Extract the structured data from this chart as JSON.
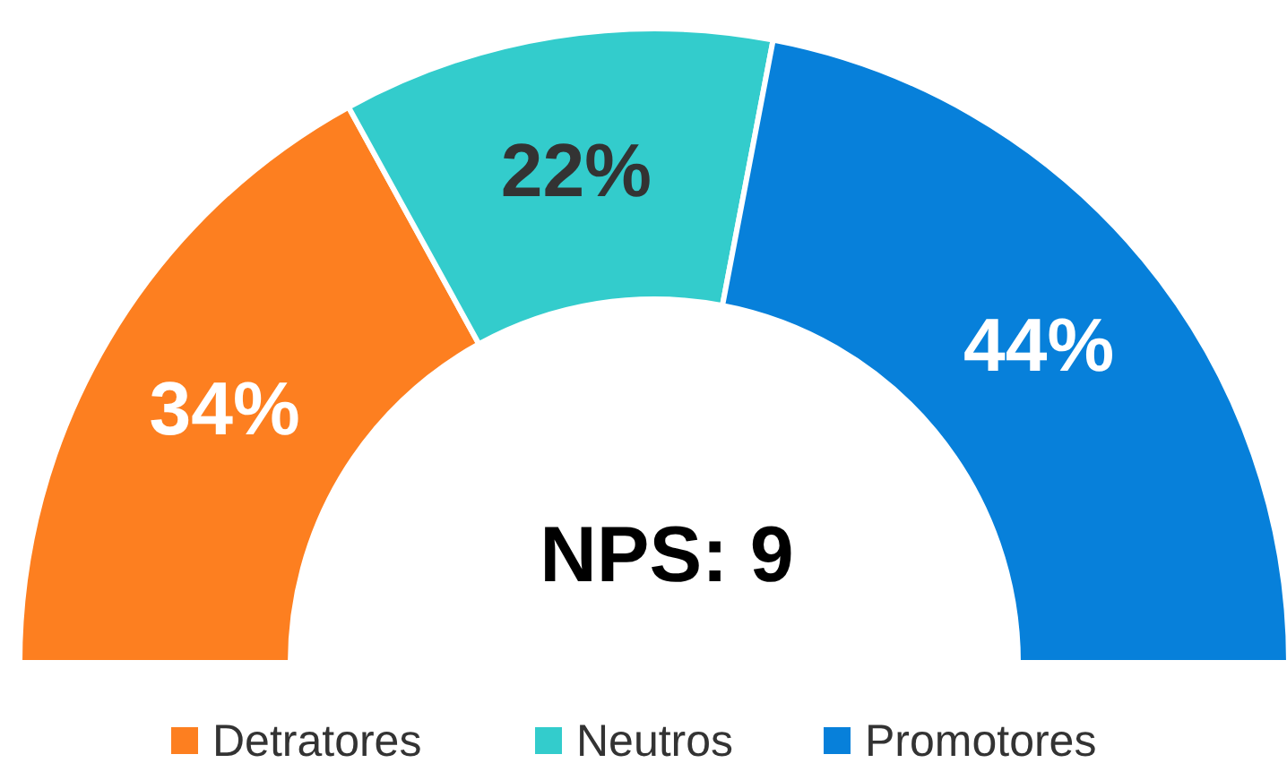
{
  "chart_data": {
    "type": "donut",
    "categories": [
      "Detratores",
      "Neutros",
      "Promotores"
    ],
    "values": [
      34,
      22,
      44
    ],
    "colors": [
      "#fd7f20",
      "#33cccc",
      "#0780da"
    ],
    "value_labels": [
      "34%",
      "22%",
      "44%"
    ],
    "legend": "bottom",
    "annotations": [
      "NPS: 9"
    ]
  }
}
